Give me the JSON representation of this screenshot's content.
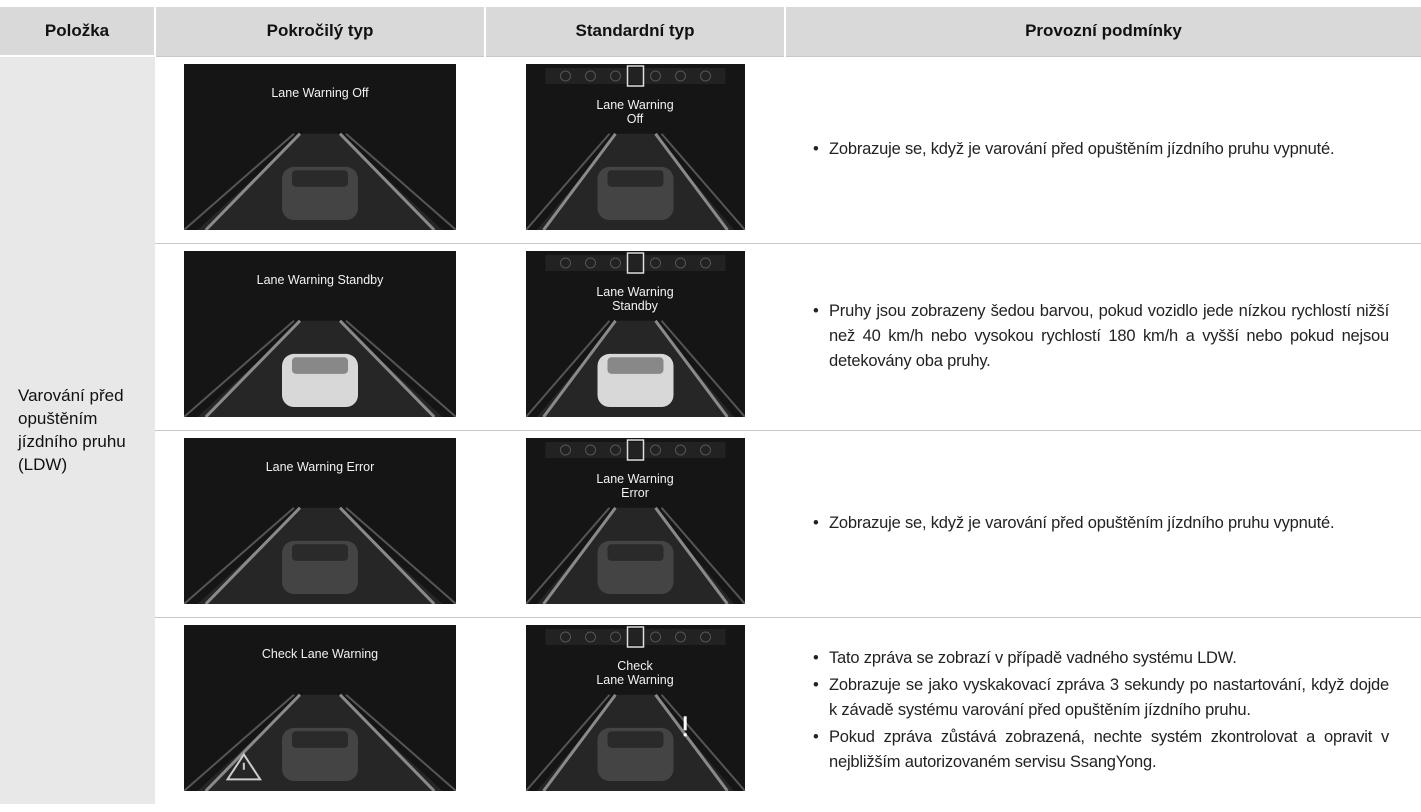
{
  "table": {
    "headers": [
      "Položka",
      "Pokročilý typ",
      "Standardní typ",
      "Provozní podmínky"
    ],
    "item": "Varování před opuštěním jízdního pruhu (LDW)",
    "rows": [
      {
        "advanced": "Lane Warning Off",
        "standard": [
          "Lane Warning",
          "Off"
        ],
        "conditions": [
          "Zobrazuje se, když je varování před opuštěním jízdního pruhu vypnuté."
        ]
      },
      {
        "advanced": "Lane Warning Standby",
        "standard": [
          "Lane Warning",
          "Standby"
        ],
        "conditions": [
          "Pruhy jsou zobrazeny šedou barvou, pokud vozidlo jede nízkou rychlostí nižší než 40 km/h nebo vysokou rychlostí 180 km/h a vyšší nebo pokud nejsou detekovány oba pruhy."
        ]
      },
      {
        "advanced": "Lane Warning Error",
        "standard": [
          "Lane Warning",
          "Error"
        ],
        "conditions": [
          "Zobrazuje se, když je varování před opuštěním jízdního pruhu vypnuté."
        ]
      },
      {
        "advanced": "Check Lane Warning",
        "standard": [
          "Check",
          "Lane Warning"
        ],
        "conditions": [
          "Tato zpráva se zobrazí v případě vadného systému LDW.",
          "Zobrazuje se jako vyskakovací zpráva 3 sekundy po nastartování, když dojde k závadě systému varování před opuštěním jízdního pruhu.",
          "Pokud zpráva zůstává zobrazená, nechte systém zkontrolovat a opravit v nejbližším autorizovaném servisu SsangYong."
        ]
      }
    ]
  }
}
